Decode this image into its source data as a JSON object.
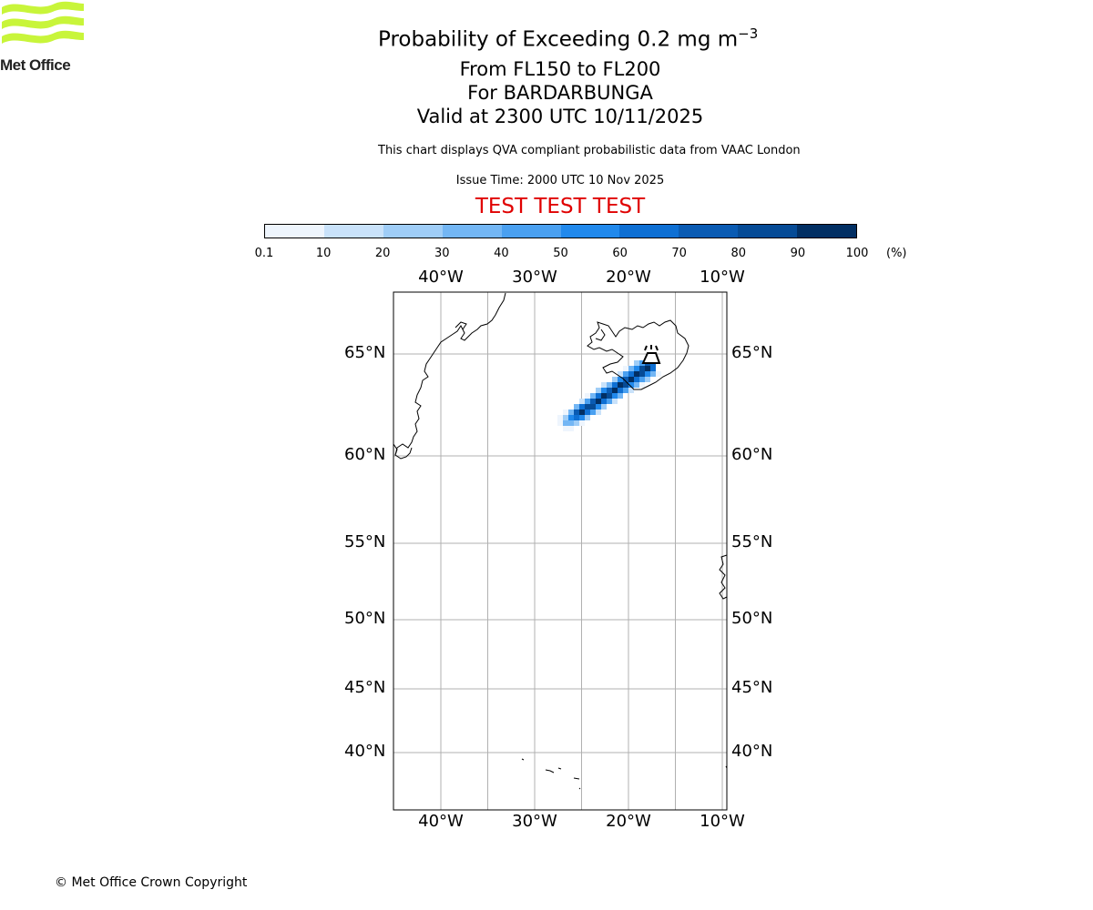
{
  "logo": {
    "text": "Met Office",
    "color": "#c8f53a"
  },
  "title": {
    "main": "Probability of Exceeding 0.2 mg m",
    "exponent": "−3",
    "flight_levels": "From FL150 to FL200",
    "volcano": "For BARDARBUNGA",
    "valid": "Valid at 2300 UTC 10/11/2025"
  },
  "description": "This chart displays QVA compliant probabilistic data from VAAC London",
  "issue_time": "Issue Time: 2000 UTC 10 Nov 2025",
  "test_banner": "TEST TEST TEST",
  "test_color": "#e00000",
  "colorbar": {
    "labels": [
      "0.1",
      "10",
      "20",
      "30",
      "40",
      "50",
      "60",
      "70",
      "80",
      "90",
      "100"
    ],
    "unit": "(%)",
    "colors": [
      "#eef5fd",
      "#c9e2fa",
      "#9fcdf7",
      "#73b6f4",
      "#4aa0f0",
      "#2189ec",
      "#0e6fd3",
      "#0a5bb3",
      "#064b96",
      "#022f63"
    ]
  },
  "map": {
    "lon_labels_top": [
      "40°W",
      "30°W",
      "20°W",
      "10°W"
    ],
    "lon_labels_bottom": [
      "40°W",
      "30°W",
      "20°W",
      "10°W"
    ],
    "lat_labels_left": [
      "65°N",
      "60°N",
      "55°N",
      "50°N",
      "45°N",
      "40°N"
    ],
    "lat_labels_right": [
      "65°N",
      "60°N",
      "55°N",
      "50°N",
      "45°N",
      "40°N"
    ],
    "lon_gridlines_deg": [
      -40,
      -35,
      -30,
      -25,
      -20,
      -15,
      -10
    ],
    "lat_gridlines_deg": [
      65,
      60,
      55,
      50,
      45,
      40
    ],
    "volcano_icon": "volcano-icon"
  },
  "copyright": "© Met Office Crown Copyright"
}
